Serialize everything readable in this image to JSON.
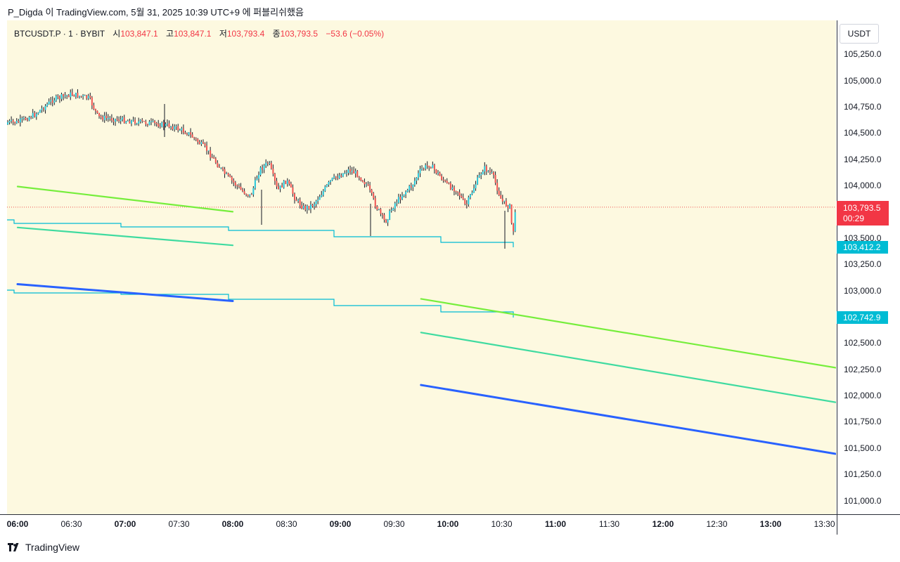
{
  "header": {
    "published_line": "P_Digda 이 TradingView.com, 5월 31, 2025 10:39 UTC+9 에 퍼블리쉬했음"
  },
  "legend": {
    "symbol": "BTCUSDT.P · 1 · BYBIT",
    "open_label": "시",
    "open_value": "103,847.1",
    "high_label": "고",
    "high_value": "103,847.1",
    "low_label": "저",
    "low_value": "103,793.4",
    "close_label": "종",
    "close_value": "103,793.5",
    "change": "−53.6 (−0.05%)"
  },
  "price_axis": {
    "currency": "USDT",
    "ticks": [
      "105,250.0",
      "105,000.0",
      "104,750.0",
      "104,500.0",
      "104,250.0",
      "104,000.0",
      "103,750.0",
      "103,500.0",
      "103,250.0",
      "103,000.0",
      "102,750.0",
      "102,500.0",
      "102,250.0",
      "102,000.0",
      "101,750.0",
      "101,500.0",
      "101,250.0",
      "101,000.0"
    ],
    "last_price_tag": {
      "price": "103,793.5",
      "countdown": "00:29",
      "color": "#f23645"
    },
    "upper_band_tag": {
      "price": "103,412.2",
      "color": "#00bcd4"
    },
    "lower_band_tag": {
      "price": "102,742.9",
      "color": "#00bcd4"
    }
  },
  "time_axis": {
    "ticks": [
      {
        "label": "06:00",
        "bold": true
      },
      {
        "label": "06:30",
        "bold": false
      },
      {
        "label": "07:00",
        "bold": true
      },
      {
        "label": "07:30",
        "bold": false
      },
      {
        "label": "08:00",
        "bold": true
      },
      {
        "label": "08:30",
        "bold": false
      },
      {
        "label": "09:00",
        "bold": true
      },
      {
        "label": "09:30",
        "bold": false
      },
      {
        "label": "10:00",
        "bold": true
      },
      {
        "label": "10:30",
        "bold": false
      },
      {
        "label": "11:00",
        "bold": true
      },
      {
        "label": "11:30",
        "bold": false
      },
      {
        "label": "12:00",
        "bold": true
      },
      {
        "label": "12:30",
        "bold": false
      },
      {
        "label": "13:00",
        "bold": true
      },
      {
        "label": "13:30",
        "bold": false
      }
    ]
  },
  "footer": {
    "brand": "TradingView"
  },
  "colors": {
    "chart_bg": "#fdf9e0",
    "up": "#26c6da",
    "down": "#ef5350",
    "line_green": "#76ee3c",
    "line_teal": "#3fdba0",
    "line_blue": "#2962ff",
    "band": "#00bcd4"
  },
  "chart_data": {
    "type": "candlestick",
    "x_range": [
      "06:00",
      "13:30"
    ],
    "y_range": [
      101000,
      105250
    ],
    "last_price": 103793.5,
    "trend_lines": [
      {
        "color": "green",
        "from": {
          "time": "06:00",
          "price": 103990
        },
        "to": {
          "time": "08:00",
          "price": 103750
        }
      },
      {
        "color": "teal",
        "from": {
          "time": "06:00",
          "price": 103600
        },
        "to": {
          "time": "08:00",
          "price": 103430
        }
      },
      {
        "color": "blue",
        "from": {
          "time": "06:00",
          "price": 103060
        },
        "to": {
          "time": "08:00",
          "price": 102900
        }
      },
      {
        "color": "green",
        "from": {
          "time": "09:45",
          "price": 102920
        },
        "to": {
          "time": "13:45",
          "price": 102240
        }
      },
      {
        "color": "teal",
        "from": {
          "time": "09:45",
          "price": 102600
        },
        "to": {
          "time": "13:45",
          "price": 101910
        }
      },
      {
        "color": "blue",
        "from": {
          "time": "09:45",
          "price": 102100
        },
        "to": {
          "time": "13:45",
          "price": 101420
        }
      }
    ],
    "close_path": [
      [
        "06:00",
        104600
      ],
      [
        "06:10",
        104680
      ],
      [
        "06:20",
        104820
      ],
      [
        "06:30",
        104870
      ],
      [
        "06:40",
        104830
      ],
      [
        "06:45",
        104650
      ],
      [
        "06:55",
        104630
      ],
      [
        "07:05",
        104610
      ],
      [
        "07:15",
        104590
      ],
      [
        "07:25",
        104570
      ],
      [
        "07:35",
        104500
      ],
      [
        "07:45",
        104350
      ],
      [
        "07:55",
        104120
      ],
      [
        "08:05",
        103950
      ],
      [
        "08:10",
        103900
      ],
      [
        "08:15",
        104150
      ],
      [
        "08:20",
        104220
      ],
      [
        "08:25",
        103950
      ],
      [
        "08:30",
        104050
      ],
      [
        "08:35",
        103870
      ],
      [
        "08:40",
        103780
      ],
      [
        "08:45",
        103820
      ],
      [
        "08:55",
        104050
      ],
      [
        "09:05",
        104150
      ],
      [
        "09:10",
        104100
      ],
      [
        "09:15",
        104000
      ],
      [
        "09:20",
        103800
      ],
      [
        "09:25",
        103650
      ],
      [
        "09:30",
        103820
      ],
      [
        "09:35",
        103920
      ],
      [
        "09:40",
        104000
      ],
      [
        "09:45",
        104150
      ],
      [
        "09:50",
        104200
      ],
      [
        "09:55",
        104100
      ],
      [
        "10:00",
        104000
      ],
      [
        "10:05",
        103960
      ],
      [
        "10:10",
        103800
      ],
      [
        "10:15",
        104000
      ],
      [
        "10:20",
        104170
      ],
      [
        "10:25",
        104100
      ],
      [
        "10:30",
        103850
      ],
      [
        "10:35",
        103790
      ],
      [
        "10:36",
        103500
      ],
      [
        "10:38",
        103793.5
      ]
    ]
  }
}
